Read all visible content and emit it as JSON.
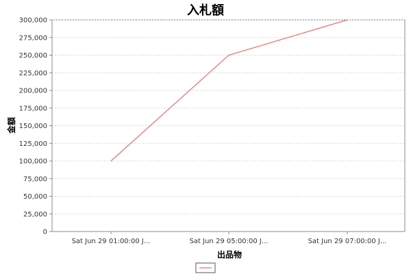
{
  "chart_data": {
    "type": "line",
    "title": "入札額",
    "xlabel": "出品物",
    "ylabel": "金額",
    "categories": [
      "Sat Jun 29 01:00:00 J...",
      "Sat Jun 29 05:00:00 J...",
      "Sat Jun 29 07:00:00 J..."
    ],
    "series": [
      {
        "color": "#e8706c",
        "values": [
          100000,
          250000,
          300000
        ]
      }
    ],
    "ylim": [
      0,
      300000
    ],
    "yticks": [
      0,
      25000,
      50000,
      75000,
      100000,
      125000,
      150000,
      175000,
      200000,
      225000,
      250000,
      275000,
      300000
    ],
    "ytick_labels": [
      "0",
      "25,000",
      "50,000",
      "75,000",
      "100,000",
      "125,000",
      "150,000",
      "175,000",
      "200,000",
      "225,000",
      "250,000",
      "275,000",
      "300,000"
    ],
    "grid": true,
    "legend_position": "bottom"
  }
}
